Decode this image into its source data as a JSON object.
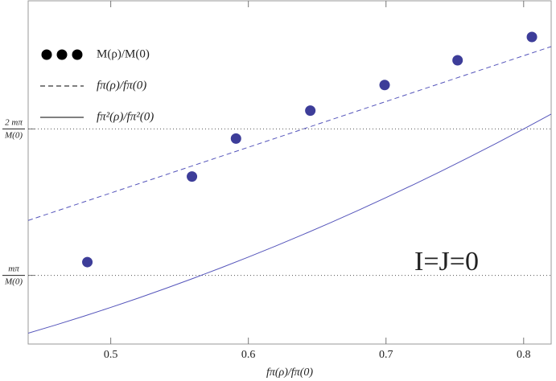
{
  "chart_data": {
    "type": "scatter",
    "xlabel": "fπ(ρ)/fπ(0)",
    "annotation": "I=J=0",
    "xlim": [
      0.44,
      0.82
    ],
    "ylim": [
      0.17,
      0.92
    ],
    "xticks": [
      0.5,
      0.6,
      0.7,
      0.8
    ],
    "yticks": [
      {
        "value": 0.32,
        "label": "mπ/M(0)"
      },
      {
        "value": 0.64,
        "label": "2 mπ/M(0)"
      }
    ],
    "grid": true,
    "legend": "top-left",
    "series": [
      {
        "name": "M(ρ)/M(0)",
        "mode": "markers",
        "color": "#3d3d99",
        "x": [
          0.483,
          0.559,
          0.591,
          0.645,
          0.699,
          0.752,
          0.806
        ],
        "values": [
          0.349,
          0.536,
          0.619,
          0.68,
          0.736,
          0.79,
          0.841
        ]
      },
      {
        "name": "fπ(ρ)/fπ(0)",
        "mode": "dashed",
        "color": "#5555bb",
        "x": [
          0.44,
          0.46,
          0.48,
          0.5,
          0.52,
          0.54,
          0.56,
          0.58,
          0.6,
          0.62,
          0.64,
          0.66,
          0.68,
          0.7,
          0.72,
          0.74,
          0.76,
          0.78,
          0.8,
          0.82
        ],
        "values": [
          0.44,
          0.46,
          0.48,
          0.5,
          0.52,
          0.54,
          0.56,
          0.58,
          0.6,
          0.62,
          0.64,
          0.66,
          0.68,
          0.7,
          0.72,
          0.74,
          0.76,
          0.78,
          0.8,
          0.82
        ]
      },
      {
        "name": "fπ²(ρ)/fπ²(0)",
        "mode": "solid",
        "color": "#5555bb",
        "x": [
          0.44,
          0.46,
          0.48,
          0.5,
          0.52,
          0.54,
          0.56,
          0.58,
          0.6,
          0.62,
          0.64,
          0.66,
          0.68,
          0.7,
          0.72,
          0.74,
          0.76,
          0.78,
          0.8,
          0.82
        ],
        "values": [
          0.1936,
          0.2116,
          0.2304,
          0.25,
          0.2704,
          0.2916,
          0.3136,
          0.3364,
          0.36,
          0.3844,
          0.4096,
          0.4356,
          0.4624,
          0.49,
          0.5184,
          0.5476,
          0.5776,
          0.6084,
          0.64,
          0.6724
        ]
      }
    ]
  }
}
